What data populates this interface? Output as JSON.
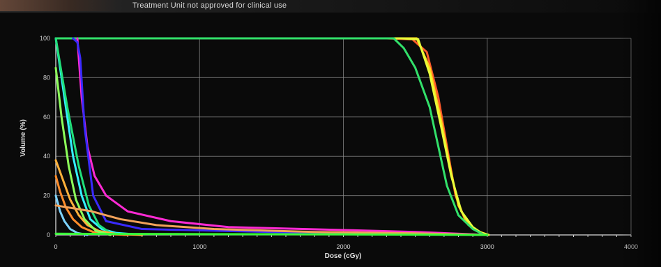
{
  "title": "Treatment Unit not approved for clinical use",
  "chart_data": {
    "type": "line",
    "title": "Treatment Unit not approved for clinical use",
    "xlabel": "Dose (cGy)",
    "ylabel": "Volume (%)",
    "xlim": [
      0,
      4000
    ],
    "ylim": [
      0,
      100
    ],
    "xticks": [
      "0",
      "1000",
      "2000",
      "3000",
      "4000"
    ],
    "yticks": [
      "0",
      "20",
      "40",
      "60",
      "80",
      "100"
    ],
    "grid": true,
    "legend": "none",
    "series": [
      {
        "color": "#ff5a2a",
        "x": [
          0,
          2300,
          2480,
          2580,
          2660,
          2720,
          2780,
          2850,
          2930,
          3000
        ],
        "y": [
          100,
          100,
          99.5,
          93,
          70,
          45,
          20,
          7,
          2,
          0
        ]
      },
      {
        "color": "#ffd21a",
        "x": [
          0,
          2450,
          2510,
          2600,
          2680,
          2740,
          2800,
          2870,
          2950,
          3010
        ],
        "y": [
          100,
          100,
          100,
          85,
          58,
          35,
          15,
          5,
          1.5,
          0
        ]
      },
      {
        "color": "#e8ff3a",
        "x": [
          0,
          2400,
          2520,
          2600,
          2680,
          2750,
          2820,
          2900,
          2960,
          3010
        ],
        "y": [
          100,
          100,
          99.5,
          82,
          55,
          30,
          12,
          4,
          1,
          0
        ]
      },
      {
        "color": "#32e06a",
        "x": [
          0,
          2350,
          2420,
          2500,
          2600,
          2660,
          2720,
          2800,
          2900,
          2980
        ],
        "y": [
          100,
          100,
          95,
          85,
          65,
          45,
          25,
          10,
          3,
          0
        ]
      },
      {
        "color": "#ff2ad4",
        "x": [
          150,
          180,
          220,
          270,
          350,
          500,
          800,
          1200,
          2000,
          2500,
          3000
        ],
        "y": [
          100,
          70,
          45,
          30,
          20,
          12,
          7,
          4,
          2.5,
          1.5,
          0
        ]
      },
      {
        "color": "#3a2aff",
        "x": [
          120,
          150,
          170,
          200,
          260,
          350,
          600,
          1500,
          3000
        ],
        "y": [
          100,
          98,
          90,
          55,
          20,
          7,
          3,
          1.5,
          0
        ]
      },
      {
        "color": "#34f0ff",
        "x": [
          0,
          60,
          120,
          180,
          240,
          320,
          420,
          600
        ],
        "y": [
          100,
          70,
          40,
          20,
          8,
          3,
          1,
          0
        ]
      },
      {
        "color": "#20e07a",
        "x": [
          0,
          80,
          160,
          230,
          300,
          380,
          480
        ],
        "y": [
          100,
          65,
          35,
          15,
          5,
          1,
          0
        ]
      },
      {
        "color": "#ffb03a",
        "x": [
          0,
          40,
          100,
          160,
          220,
          300,
          420,
          600
        ],
        "y": [
          38,
          30,
          18,
          10,
          5,
          2,
          0.5,
          0
        ]
      },
      {
        "color": "#ff8c2a",
        "x": [
          0,
          30,
          70,
          120,
          180,
          260,
          360,
          500
        ],
        "y": [
          30,
          22,
          14,
          8,
          4,
          1.5,
          0.5,
          0
        ]
      },
      {
        "color": "#8cff5a",
        "x": [
          0,
          40,
          90,
          140,
          200,
          280,
          380
        ],
        "y": [
          85,
          60,
          35,
          18,
          8,
          2,
          0
        ]
      },
      {
        "color": "#7dd3ff",
        "x": [
          0,
          30,
          60,
          100,
          150,
          220
        ],
        "y": [
          20,
          12,
          7,
          3,
          1,
          0
        ]
      },
      {
        "color": "#f2a25a",
        "x": [
          0,
          250,
          450,
          700,
          1100,
          1800,
          2500,
          3000
        ],
        "y": [
          15,
          12,
          8,
          5,
          3,
          1.5,
          0.8,
          0
        ]
      },
      {
        "color": "#3aff3a",
        "x": [
          0,
          500,
          1000,
          2000,
          3000
        ],
        "y": [
          0.6,
          0.5,
          0.4,
          0.3,
          0
        ]
      }
    ]
  }
}
